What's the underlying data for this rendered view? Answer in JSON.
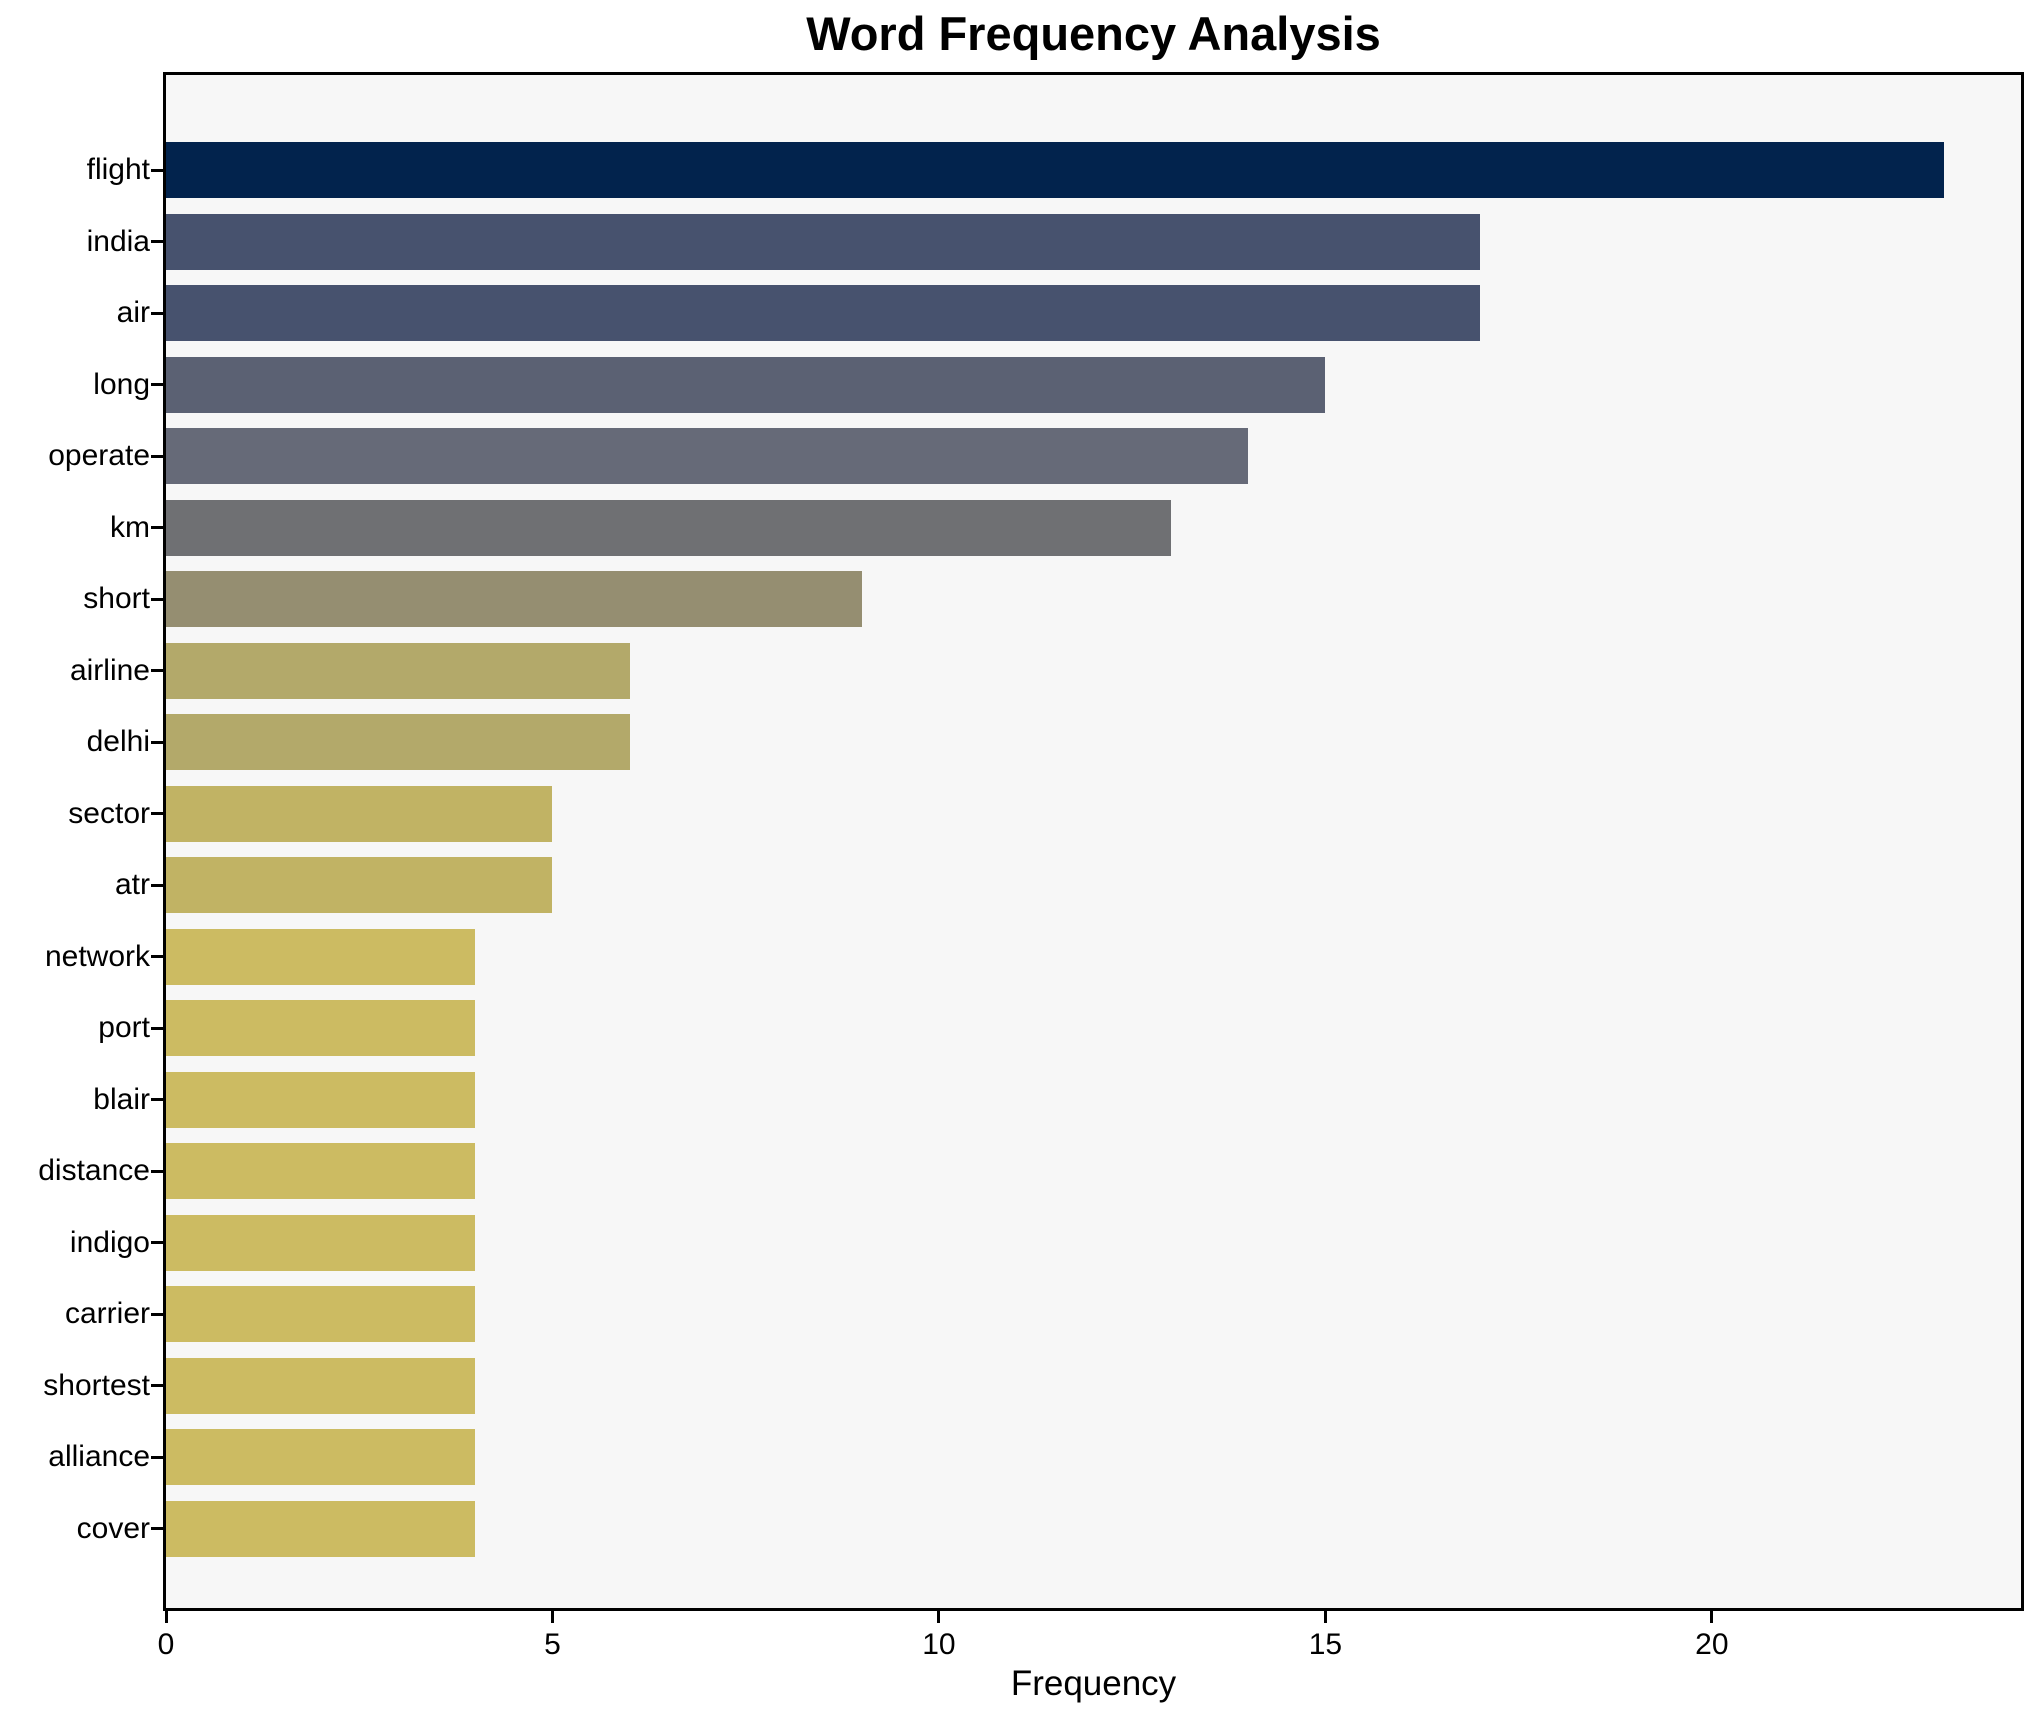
{
  "title": "Word Frequency Analysis",
  "xlabel": "Frequency",
  "chart_data": {
    "type": "bar",
    "orientation": "horizontal",
    "title": "Word Frequency Analysis",
    "xlabel": "Frequency",
    "ylabel": "",
    "categories": [
      "flight",
      "india",
      "air",
      "long",
      "operate",
      "km",
      "short",
      "airline",
      "delhi",
      "sector",
      "atr",
      "network",
      "port",
      "blair",
      "distance",
      "indigo",
      "carrier",
      "shortest",
      "alliance",
      "cover"
    ],
    "values": [
      23,
      17,
      17,
      15,
      14,
      13,
      9,
      6,
      6,
      5,
      5,
      4,
      4,
      4,
      4,
      4,
      4,
      4,
      4,
      4
    ],
    "bar_colors": [
      "#02234d",
      "#47526e",
      "#47526e",
      "#5b6173",
      "#666a78",
      "#6f7073",
      "#958e71",
      "#b3a96a",
      "#b3a96a",
      "#c1b364",
      "#c1b364",
      "#ccbb62",
      "#ccbb62",
      "#ccbb62",
      "#ccbb62",
      "#ccbb62",
      "#ccbb62",
      "#ccbb62",
      "#ccbb62",
      "#ccbb62"
    ],
    "xlim": [
      0,
      24
    ],
    "xticks": [
      0,
      5,
      10,
      15,
      20
    ],
    "grid": false,
    "legend": null,
    "plot_background": "#f7f7f7",
    "figure_background": "#ffffff",
    "spine_color": "#000000",
    "bar_height_fraction": 0.8
  }
}
